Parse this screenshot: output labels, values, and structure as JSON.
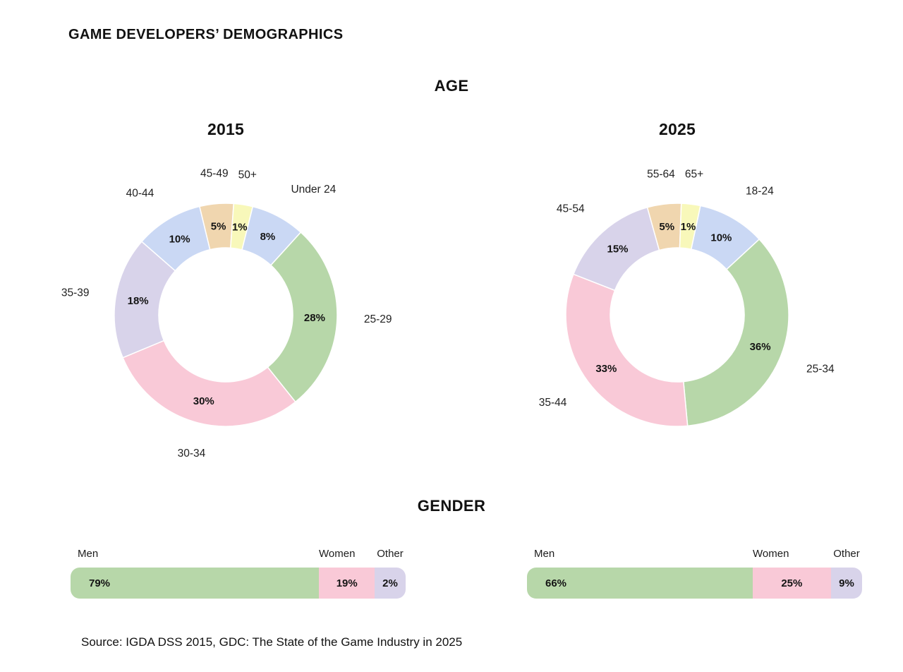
{
  "page": {
    "title": "GAME DEVELOPERS’ DEMOGRAPHICS",
    "source_note": "Source: IGDA DSS 2015, GDC: The State of the Game Industry in 2025"
  },
  "sections": {
    "age": {
      "heading": "AGE"
    },
    "gender": {
      "heading": "GENDER"
    }
  },
  "palette": {
    "green": "#b7d7a9",
    "pink": "#f9c9d7",
    "lavender": "#d8d3ea",
    "blue": "#cad8f4",
    "tan": "#f0d6af",
    "yellow": "#f8f8ba",
    "label_text": "#141414"
  },
  "chart_data": [
    {
      "id": "age-2015",
      "type": "pie",
      "subtype": "donut",
      "title": "2015",
      "unit": "%",
      "start_angle_deg": 14,
      "legend_position": "outside-labels",
      "segments": [
        {
          "label": "Under 24",
          "value": 8,
          "color": "blue"
        },
        {
          "label": "25-29",
          "value": 28,
          "color": "green"
        },
        {
          "label": "30-34",
          "value": 30,
          "color": "pink"
        },
        {
          "label": "35-39",
          "value": 18,
          "color": "lavender"
        },
        {
          "label": "40-44",
          "value": 10,
          "color": "blue"
        },
        {
          "label": "45-49",
          "value": 5,
          "color": "tan"
        },
        {
          "label": "50+",
          "value": 1,
          "color": "yellow"
        }
      ]
    },
    {
      "id": "age-2025",
      "type": "pie",
      "subtype": "donut",
      "title": "2025",
      "unit": "%",
      "start_angle_deg": 12,
      "legend_position": "outside-labels",
      "segments": [
        {
          "label": "18-24",
          "value": 10,
          "color": "blue"
        },
        {
          "label": "25-34",
          "value": 36,
          "color": "green"
        },
        {
          "label": "35-44",
          "value": 33,
          "color": "pink"
        },
        {
          "label": "45-54",
          "value": 15,
          "color": "lavender"
        },
        {
          "label": "55-64",
          "value": 5,
          "color": "tan"
        },
        {
          "label": "65+",
          "value": 1,
          "color": "yellow"
        }
      ]
    },
    {
      "id": "gender-2015",
      "type": "bar",
      "subtype": "stacked-horizontal",
      "year": "2015",
      "unit": "%",
      "segments": [
        {
          "label": "Men",
          "value": 79,
          "color": "green"
        },
        {
          "label": "Women",
          "value": 19,
          "color": "pink"
        },
        {
          "label": "Other",
          "value": 2,
          "color": "lavender"
        }
      ]
    },
    {
      "id": "gender-2025",
      "type": "bar",
      "subtype": "stacked-horizontal",
      "year": "2025",
      "unit": "%",
      "segments": [
        {
          "label": "Men",
          "value": 66,
          "color": "green"
        },
        {
          "label": "Women",
          "value": 25,
          "color": "pink"
        },
        {
          "label": "Other",
          "value": 9,
          "color": "lavender"
        }
      ]
    }
  ]
}
